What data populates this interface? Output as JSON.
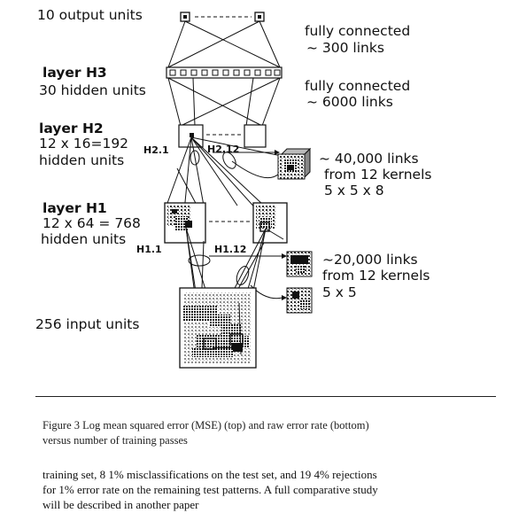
{
  "labels": {
    "output_units": "10 output units",
    "fc1_line1": "fully connected",
    "fc1_line2": "~ 300 links",
    "h3_title": "layer H3",
    "h3_units": "30 hidden units",
    "fc2_line1": "fully connected",
    "fc2_line2": "~ 6000 links",
    "h2_title": "layer H2",
    "h2_line1": "12 x 16=192",
    "h2_line2": "hidden units",
    "h2_1": "H2.1",
    "h2_12": "H2.12",
    "links40_line1": "~ 40,000 links",
    "links40_line2": "from 12 kernels",
    "links40_line3": "5 x 5 x 8",
    "h1_title": "layer H1",
    "h1_line1": "12 x 64 = 768",
    "h1_line2": "hidden units",
    "h1_1": "H1.1",
    "h1_12": "H1.12",
    "links20_line1": "~20,000 links",
    "links20_line2": "from 12 kernels",
    "links20_line3": "5 x 5",
    "input_units": "256 input units"
  },
  "caption": {
    "line1": "Figure 3  Log mean squared error (MSE) (top) and raw error rate (bottom)",
    "line2": "versus number of training passes"
  },
  "body": {
    "line1": "training set, 8 1% misclassifications on the test set, and 19 4% rejections",
    "line2": "for 1% error rate on the remaining test patterns. A full comparative study",
    "line3": "will be described in another paper"
  }
}
